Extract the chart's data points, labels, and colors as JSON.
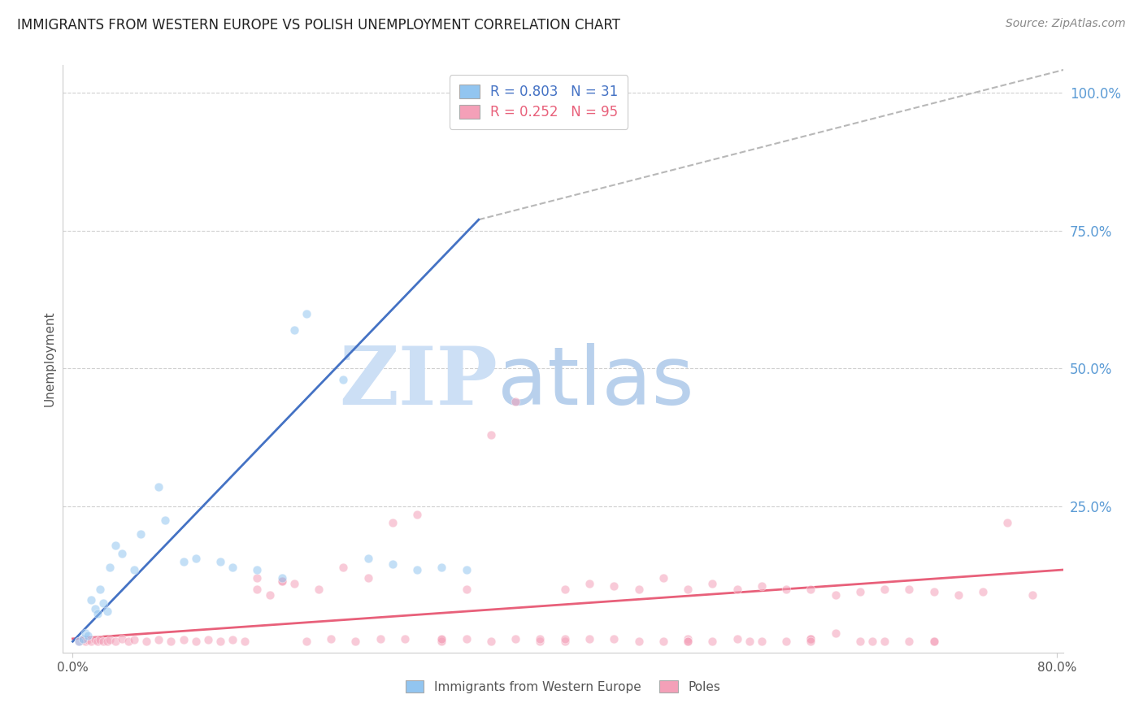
{
  "title": "IMMIGRANTS FROM WESTERN EUROPE VS POLISH UNEMPLOYMENT CORRELATION CHART",
  "source": "Source: ZipAtlas.com",
  "ylabel": "Unemployment",
  "right_yticks": [
    "100.0%",
    "75.0%",
    "50.0%",
    "25.0%"
  ],
  "right_ytick_vals": [
    1.0,
    0.75,
    0.5,
    0.25
  ],
  "legend_blue_label": "Immigrants from Western Europe",
  "legend_pink_label": "Poles",
  "legend_blue_r": "R = 0.803",
  "legend_blue_n": "N = 31",
  "legend_pink_r": "R = 0.252",
  "legend_pink_n": "N = 95",
  "blue_color": "#92c5f0",
  "blue_line_color": "#4472c4",
  "pink_color": "#f4a0b8",
  "pink_line_color": "#e8607a",
  "dashed_line_color": "#b8b8b8",
  "watermark_zip_color": "#ccdff5",
  "watermark_atlas_color": "#b8d0ec",
  "title_color": "#222222",
  "axis_label_color": "#555555",
  "right_tick_color": "#5b9bd5",
  "grid_color": "#d0d0d0",
  "xlim": [
    -0.008,
    0.805
  ],
  "ylim": [
    -0.015,
    1.05
  ],
  "blue_scatter_x": [
    0.005,
    0.008,
    0.01,
    0.012,
    0.015,
    0.018,
    0.02,
    0.022,
    0.025,
    0.028,
    0.03,
    0.035,
    0.04,
    0.05,
    0.055,
    0.07,
    0.075,
    0.09,
    0.1,
    0.12,
    0.13,
    0.15,
    0.17,
    0.18,
    0.19,
    0.22,
    0.24,
    0.26,
    0.28,
    0.3,
    0.32
  ],
  "blue_scatter_y": [
    0.005,
    0.01,
    0.02,
    0.015,
    0.08,
    0.065,
    0.055,
    0.1,
    0.075,
    0.06,
    0.14,
    0.18,
    0.165,
    0.135,
    0.2,
    0.285,
    0.225,
    0.15,
    0.155,
    0.15,
    0.14,
    0.135,
    0.12,
    0.57,
    0.6,
    0.48,
    0.155,
    0.145,
    0.135,
    0.14,
    0.135
  ],
  "pink_scatter_x": [
    0.005,
    0.008,
    0.01,
    0.012,
    0.015,
    0.018,
    0.02,
    0.022,
    0.025,
    0.028,
    0.03,
    0.035,
    0.04,
    0.045,
    0.05,
    0.06,
    0.07,
    0.08,
    0.09,
    0.1,
    0.11,
    0.12,
    0.13,
    0.14,
    0.15,
    0.16,
    0.17,
    0.18,
    0.2,
    0.22,
    0.24,
    0.26,
    0.28,
    0.3,
    0.32,
    0.34,
    0.36,
    0.38,
    0.4,
    0.42,
    0.44,
    0.46,
    0.48,
    0.5,
    0.52,
    0.54,
    0.56,
    0.58,
    0.6,
    0.62,
    0.64,
    0.66,
    0.68,
    0.7,
    0.72,
    0.74,
    0.76,
    0.78,
    0.15,
    0.17,
    0.19,
    0.21,
    0.23,
    0.25,
    0.27,
    0.3,
    0.32,
    0.34,
    0.36,
    0.38,
    0.4,
    0.42,
    0.44,
    0.46,
    0.48,
    0.5,
    0.52,
    0.54,
    0.56,
    0.58,
    0.6,
    0.62,
    0.64,
    0.66,
    0.3,
    0.4,
    0.5,
    0.6,
    0.68,
    0.7,
    0.5,
    0.55,
    0.6,
    0.65,
    0.7
  ],
  "pink_scatter_y": [
    0.005,
    0.008,
    0.005,
    0.008,
    0.005,
    0.008,
    0.005,
    0.008,
    0.006,
    0.005,
    0.008,
    0.005,
    0.01,
    0.005,
    0.008,
    0.005,
    0.008,
    0.005,
    0.008,
    0.005,
    0.008,
    0.005,
    0.008,
    0.005,
    0.1,
    0.09,
    0.115,
    0.11,
    0.1,
    0.14,
    0.12,
    0.22,
    0.235,
    0.008,
    0.1,
    0.38,
    0.44,
    0.005,
    0.1,
    0.11,
    0.105,
    0.1,
    0.12,
    0.1,
    0.11,
    0.1,
    0.105,
    0.1,
    0.1,
    0.09,
    0.095,
    0.1,
    0.1,
    0.095,
    0.09,
    0.095,
    0.22,
    0.09,
    0.12,
    0.115,
    0.005,
    0.01,
    0.005,
    0.01,
    0.01,
    0.005,
    0.01,
    0.005,
    0.01,
    0.01,
    0.005,
    0.01,
    0.01,
    0.005,
    0.005,
    0.01,
    0.005,
    0.01,
    0.005,
    0.005,
    0.01,
    0.02,
    0.005,
    0.005,
    0.01,
    0.01,
    0.005,
    0.01,
    0.005,
    0.005,
    0.005,
    0.005,
    0.005,
    0.005,
    0.005
  ],
  "blue_line_x": [
    0.0,
    0.33
  ],
  "blue_line_y": [
    0.005,
    0.77
  ],
  "pink_line_x": [
    0.0,
    0.805
  ],
  "pink_line_y": [
    0.01,
    0.135
  ],
  "dashed_line_x": [
    0.33,
    0.82
  ],
  "dashed_line_y": [
    0.77,
    1.05
  ],
  "marker_size": 60,
  "marker_alpha": 0.55,
  "line_width": 2.0
}
